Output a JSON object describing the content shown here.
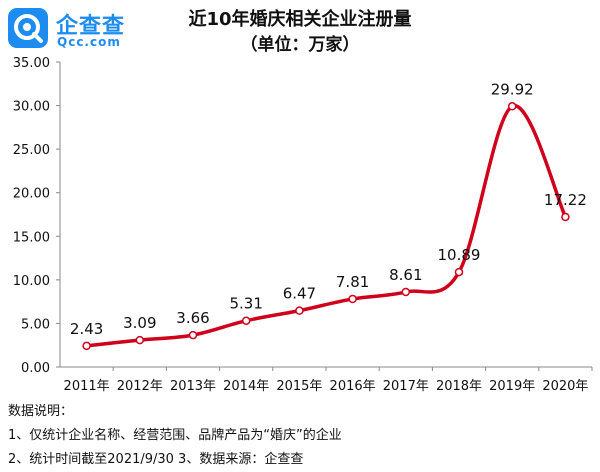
{
  "logo": {
    "name": "企查查",
    "url": "Qcc.com",
    "brand_color": "#1d8cf0"
  },
  "chart_data": {
    "type": "line",
    "title": "近10年婚庆相关企业注册量",
    "subtitle": "（单位：万家）",
    "categories": [
      "2011年",
      "2012年",
      "2013年",
      "2014年",
      "2015年",
      "2016年",
      "2017年",
      "2018年",
      "2019年",
      "2020年"
    ],
    "series": [
      {
        "values": [
          2.43,
          3.09,
          3.66,
          5.31,
          6.47,
          7.81,
          8.61,
          10.89,
          29.92,
          17.22
        ],
        "color": "#d0021b"
      }
    ],
    "data_labels": [
      "2.43",
      "3.09",
      "3.66",
      "5.31",
      "6.47",
      "7.81",
      "8.61",
      "10.89",
      "29.92",
      "17.22"
    ],
    "ylim": [
      0,
      35
    ],
    "yticks": [
      "0.00",
      "5.00",
      "10.00",
      "15.00",
      "20.00",
      "25.00",
      "30.00",
      "35.00"
    ],
    "smooth": true,
    "grid": false,
    "line_color": "#d0021b"
  },
  "notes": {
    "heading": "数据说明：",
    "line1": "1、仅统计企业名称、经营范围、品牌产品为“婚庆”的企业",
    "line2": "2、统计时间截至2021/9/30    3、数据来源：企查查"
  }
}
